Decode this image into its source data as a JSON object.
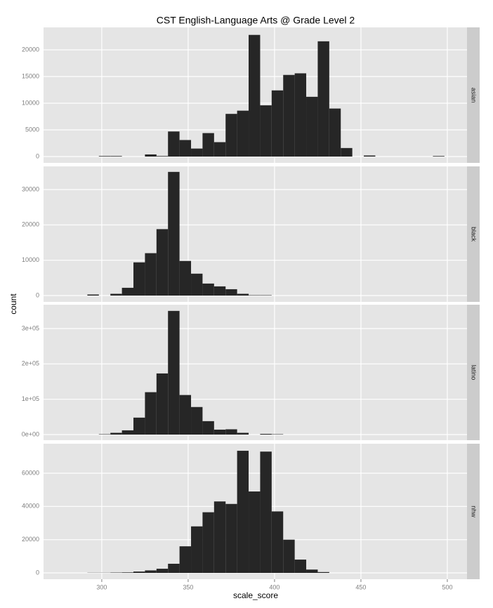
{
  "chart_data": {
    "type": "histogram",
    "title": "CST English-Language Arts @ Grade Level 2",
    "xlabel": "scale_score",
    "ylabel": "count",
    "color": "#262626",
    "bins": [
      271.67,
      278.33,
      285,
      291.67,
      298.33,
      305,
      311.67,
      318.33,
      325,
      331.67,
      338.33,
      345,
      351.67,
      358.33,
      365,
      371.67,
      378.33,
      385,
      391.67,
      398.33,
      405,
      411.67,
      418.33,
      425,
      431.67,
      438.33,
      445,
      451.67,
      458.33,
      465,
      471.67,
      478.33,
      485,
      491.67,
      498.33,
      505
    ],
    "xlim": [
      266.3,
      511.4
    ],
    "xticks": [
      300,
      350,
      400,
      450,
      500
    ],
    "grid": true,
    "series": [
      {
        "name": "asian",
        "ylim": [
          -1184,
          24210
        ],
        "yticks": [
          0,
          5000,
          10000,
          15000,
          20000
        ],
        "values": [
          0,
          0,
          0,
          0,
          100,
          100,
          0,
          0,
          400,
          100,
          4700,
          3100,
          1500,
          4400,
          2700,
          8000,
          8600,
          22800,
          9600,
          12400,
          15300,
          15600,
          11200,
          21600,
          9000,
          1600,
          0,
          200,
          0,
          0,
          0,
          0,
          0,
          100,
          0
        ]
      },
      {
        "name": "black",
        "ylim": [
          -1788,
          36556
        ],
        "yticks": [
          0,
          10000,
          20000,
          30000
        ],
        "values": [
          0,
          0,
          0,
          300,
          0,
          500,
          2200,
          9400,
          12000,
          18800,
          35000,
          9800,
          6200,
          3400,
          2600,
          1800,
          500,
          100,
          100,
          0,
          0,
          0,
          0,
          0,
          0,
          0,
          0,
          0,
          0,
          0,
          0,
          0,
          0,
          0,
          0
        ]
      },
      {
        "name": "latino",
        "ylim": [
          -15894,
          367550
        ],
        "yticks": [
          {
            "value": 0,
            "label": "0e+00"
          },
          {
            "value": 100000,
            "label": "1e+05"
          },
          {
            "value": 200000,
            "label": "2e+05"
          },
          {
            "value": 300000,
            "label": "3e+05"
          }
        ],
        "values": [
          0,
          0,
          0,
          0,
          1000,
          5000,
          12000,
          48000,
          120000,
          173000,
          350000,
          112000,
          78000,
          38000,
          14000,
          15000,
          5000,
          0,
          2000,
          1000,
          0,
          0,
          0,
          0,
          0,
          0,
          0,
          0,
          0,
          0,
          0,
          0,
          0,
          0,
          0
        ]
      },
      {
        "name": "nhw",
        "ylim": [
          -3803,
          77746
        ],
        "yticks": [
          0,
          20000,
          40000,
          60000
        ],
        "values": [
          0,
          0,
          0,
          100,
          100,
          200,
          300,
          800,
          1500,
          2500,
          5500,
          16000,
          28000,
          36500,
          43000,
          41500,
          73500,
          49000,
          73000,
          37000,
          20000,
          8000,
          2000,
          500,
          0,
          0,
          0,
          0,
          0,
          0,
          0,
          0,
          0,
          0,
          0
        ]
      }
    ]
  }
}
